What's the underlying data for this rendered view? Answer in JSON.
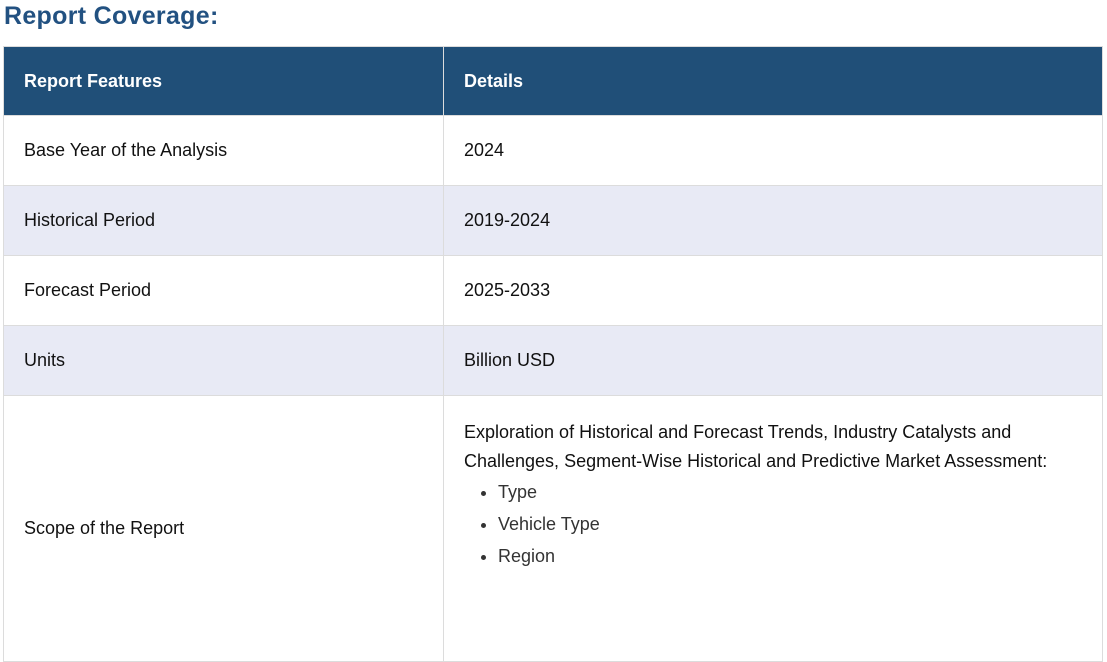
{
  "title": "Report Coverage:",
  "table": {
    "headers": [
      "Report Features",
      "Details"
    ],
    "rows": [
      {
        "feature": "Base Year of the Analysis",
        "detail": "2024"
      },
      {
        "feature": "Historical Period",
        "detail": "2019-2024"
      },
      {
        "feature": "Forecast Period",
        "detail": "2025-2033"
      },
      {
        "feature": "Units",
        "detail": "Billion USD"
      }
    ],
    "scope": {
      "feature": "Scope of the Report",
      "detail": "Exploration of Historical and Forecast Trends, Industry Catalysts and Challenges, Segment-Wise Historical and Predictive Market Assessment:",
      "items": [
        "Type",
        "Vehicle Type",
        "Region"
      ]
    }
  },
  "colors": {
    "header_bg": "#204f78",
    "title": "#225181",
    "alt_row": "#e8eaf5"
  }
}
